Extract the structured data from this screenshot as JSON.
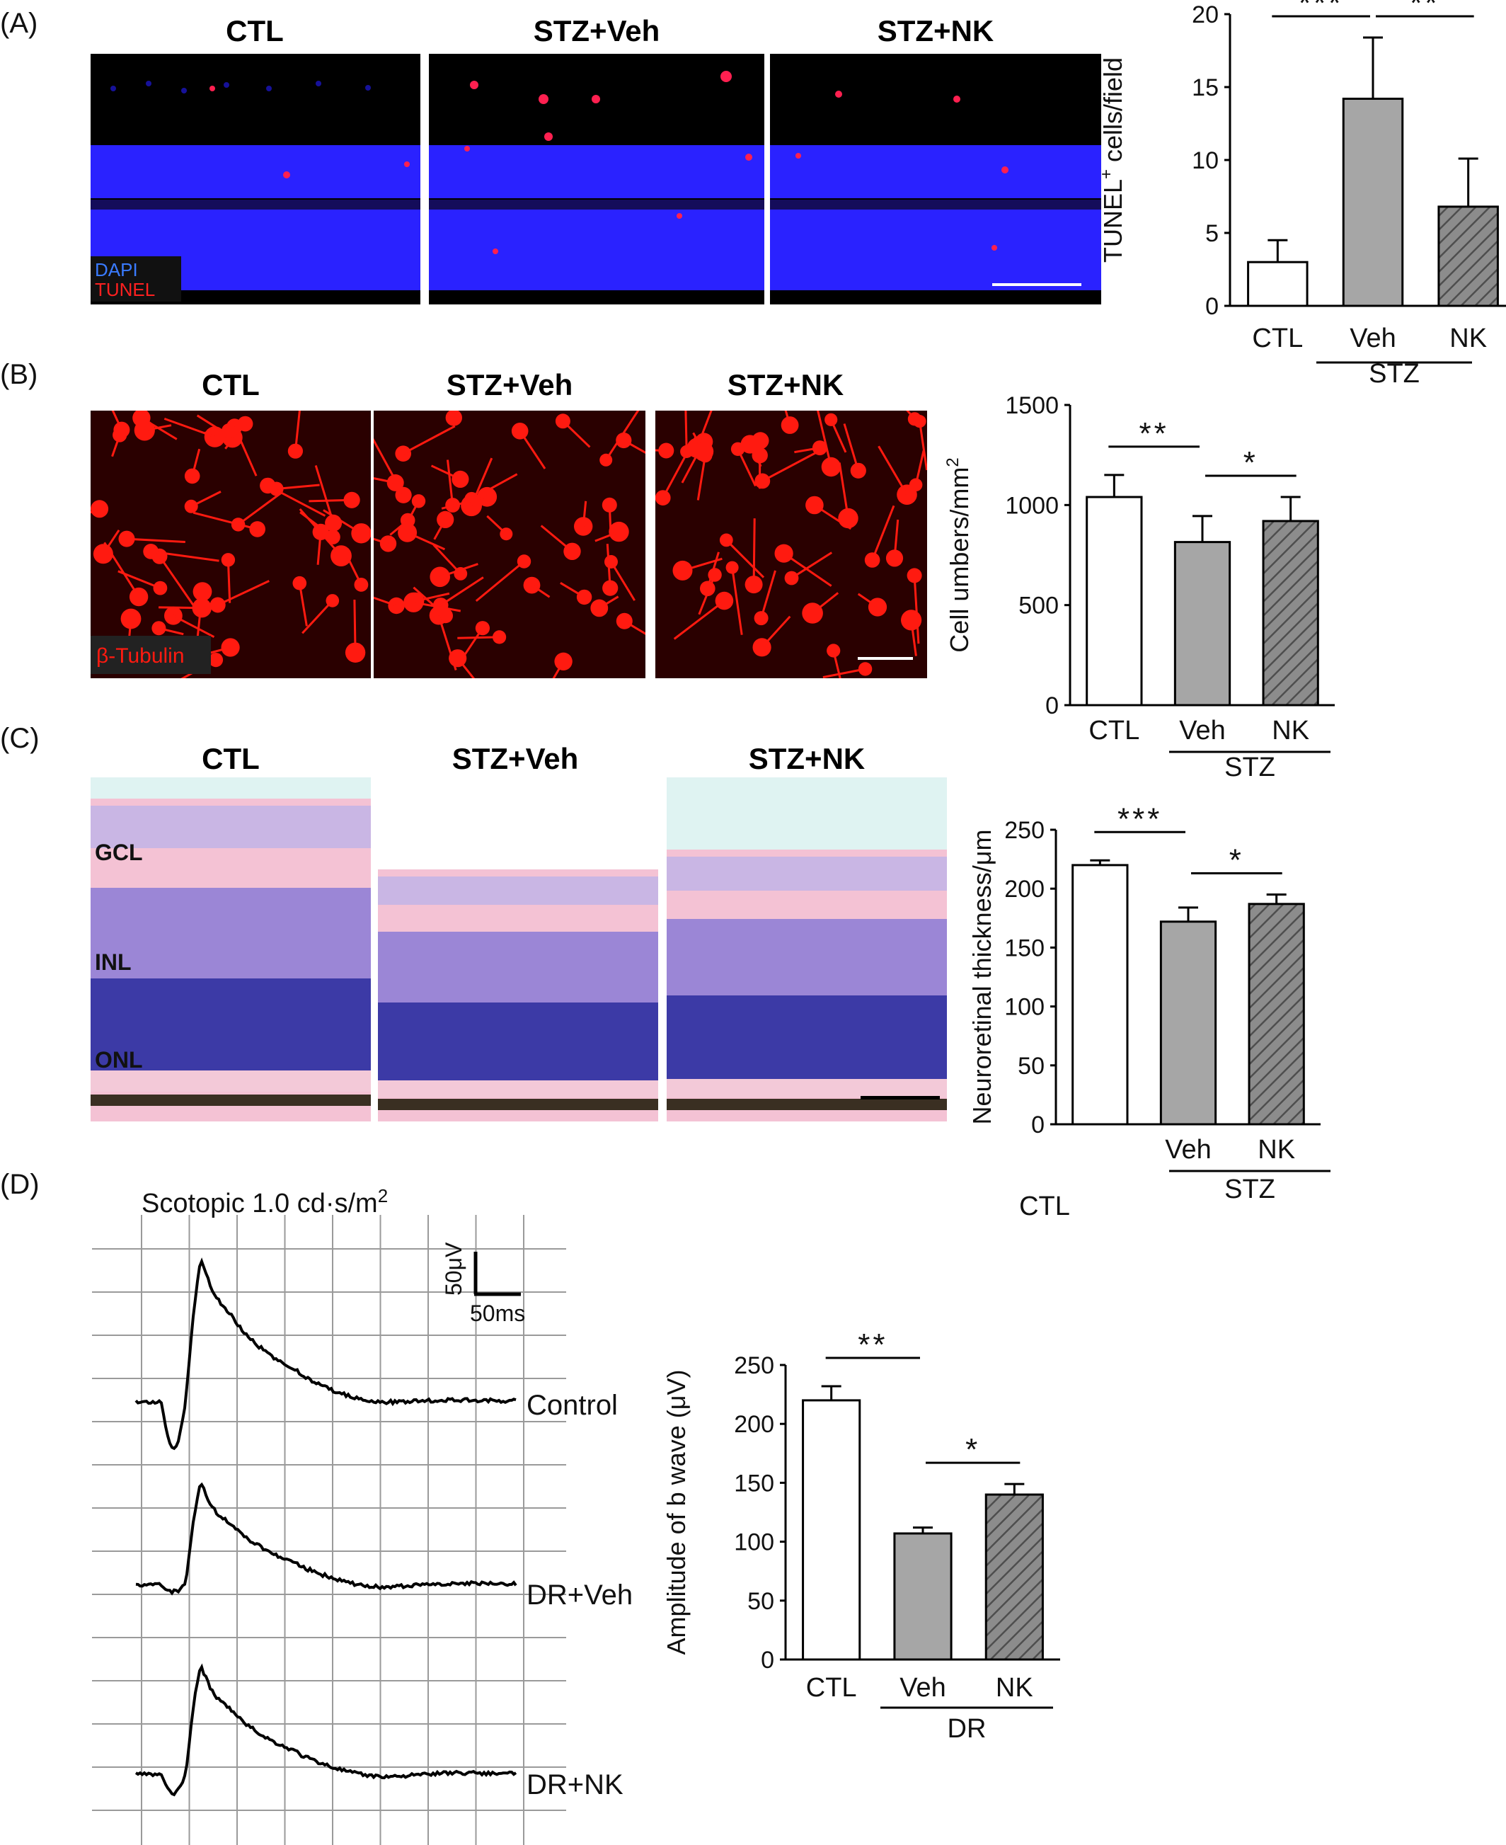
{
  "panels": {
    "A": {
      "letter": "(A)",
      "images": [
        {
          "title": "CTL"
        },
        {
          "title": "STZ+Veh"
        },
        {
          "title": "STZ+NK"
        }
      ],
      "stain_labels": [
        "DAPI",
        "TUNEL"
      ],
      "colors": {
        "background": "#000000",
        "dapi": "#2a22ff",
        "tunel": "#ff2050",
        "dapi_label": "#3a7bff",
        "tunel_label": "#ff2020"
      }
    },
    "B": {
      "letter": "(B)",
      "images": [
        {
          "title": "CTL"
        },
        {
          "title": "STZ+Veh"
        },
        {
          "title": "STZ+NK"
        }
      ],
      "stain_labels": [
        "β-Tubulin"
      ],
      "colors": {
        "background": "#1a0000",
        "stain": "#ff1a10"
      }
    },
    "C": {
      "letter": "(C)",
      "images": [
        {
          "title": "CTL"
        },
        {
          "title": "STZ+Veh"
        },
        {
          "title": "STZ+NK"
        }
      ],
      "layer_labels": [
        "GCL",
        "INL",
        "ONL"
      ],
      "colors": {
        "pink": "#f4b9cf",
        "purple": "#7a5fc4",
        "dark_blue": "#2e2e9a",
        "pigment": "#3a2f22"
      }
    },
    "D": {
      "letter": "(D)",
      "condition_title": "Scotopic 1.0 cd·s/m",
      "condition_superscript": "2",
      "scale_bar": {
        "voltage": "50μV",
        "time": "50ms"
      },
      "trace_labels": [
        "Control",
        "DR+Veh",
        "DR+NK"
      ]
    }
  },
  "chart_data": [
    {
      "type": "bar",
      "panel": "A",
      "categories": [
        "CTL",
        "Veh",
        "NK"
      ],
      "group_label": "STZ",
      "values": [
        3.0,
        14.2,
        6.8
      ],
      "errors": [
        1.5,
        4.2,
        3.3
      ],
      "ylabel": "TUNEL",
      "ylabel_superscript": "+",
      "ylabel_suffix": " cells/field",
      "ylim": [
        0,
        20
      ],
      "yticks": [
        0,
        5,
        10,
        15,
        20
      ],
      "significance": [
        {
          "from": 0,
          "to": 1,
          "label": "***"
        },
        {
          "from": 1,
          "to": 2,
          "label": "**"
        }
      ],
      "fills": [
        "white",
        "gray",
        "hatched"
      ],
      "colors": {
        "gray": "#a6a6a6",
        "hatch_bg": "#8c8c8c",
        "hatch_line": "#505050"
      }
    },
    {
      "type": "bar",
      "panel": "B",
      "categories": [
        "CTL",
        "Veh",
        "NK"
      ],
      "group_label": "STZ",
      "values": [
        1040,
        815,
        920
      ],
      "errors": [
        110,
        130,
        120
      ],
      "ylabel": "Cell umbers/mm",
      "ylabel_superscript": "2",
      "ylabel_suffix": "",
      "ylim": [
        0,
        1500
      ],
      "yticks": [
        0,
        500,
        1000,
        1500
      ],
      "significance": [
        {
          "from": 0,
          "to": 1,
          "label": "**"
        },
        {
          "from": 1,
          "to": 2,
          "label": "*"
        }
      ],
      "fills": [
        "white",
        "gray",
        "hatched"
      ],
      "colors": {
        "gray": "#a6a6a6",
        "hatch_bg": "#8c8c8c",
        "hatch_line": "#505050"
      }
    },
    {
      "type": "bar",
      "panel": "C",
      "categories": [
        "",
        "Veh",
        "NK"
      ],
      "group_label": "STZ",
      "stray_label": "CTL",
      "values": [
        220,
        172,
        187
      ],
      "errors": [
        4,
        12,
        8
      ],
      "ylabel": "Neuroretinal thickness/μm",
      "ylabel_superscript": "",
      "ylabel_suffix": "",
      "ylim": [
        0,
        250
      ],
      "yticks": [
        0,
        50,
        100,
        150,
        200,
        250
      ],
      "significance": [
        {
          "from": 0,
          "to": 1,
          "label": "***"
        },
        {
          "from": 1,
          "to": 2,
          "label": "*"
        }
      ],
      "fills": [
        "white",
        "gray",
        "hatched"
      ],
      "colors": {
        "gray": "#a6a6a6",
        "hatch_bg": "#8c8c8c",
        "hatch_line": "#505050"
      }
    },
    {
      "type": "bar",
      "panel": "D",
      "categories": [
        "CTL",
        "Veh",
        "NK"
      ],
      "group_label": "DR",
      "values": [
        220,
        107,
        140
      ],
      "errors": [
        12,
        5,
        9
      ],
      "ylabel": "Amplitude of b wave (μV)",
      "ylabel_superscript": "",
      "ylabel_suffix": "",
      "ylim": [
        0,
        250
      ],
      "yticks": [
        0,
        50,
        100,
        150,
        200,
        250
      ],
      "significance": [
        {
          "from": 0,
          "to": 1,
          "label": "**"
        },
        {
          "from": 1,
          "to": 2,
          "label": "*"
        }
      ],
      "fills": [
        "white",
        "gray",
        "hatched"
      ],
      "colors": {
        "gray": "#a6a6a6",
        "hatch_bg": "#8c8c8c",
        "hatch_line": "#505050"
      }
    }
  ]
}
